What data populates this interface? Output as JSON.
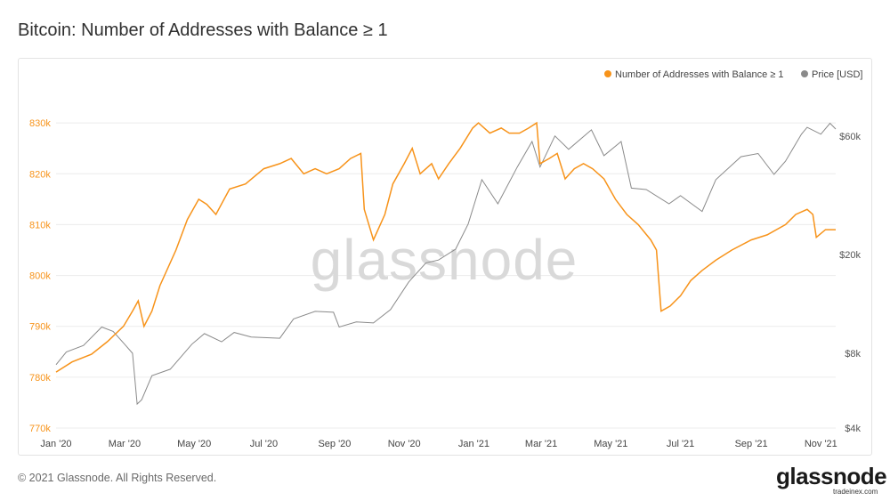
{
  "header": {
    "title": "Bitcoin: Number of Addresses with Balance ≥ 1"
  },
  "footer": {
    "copyright": "© 2021 Glassnode. All Rights Reserved.",
    "logo": "glassnode",
    "credit": "tradeinex.com"
  },
  "watermark": "glassnode",
  "colors": {
    "addresses": "#f7931a",
    "price": "#8a8a8a",
    "grid": "#ececec"
  },
  "chart_data": {
    "type": "line",
    "x_ticks": [
      "Jan '20",
      "Mar '20",
      "May '20",
      "Jul '20",
      "Sep '20",
      "Nov '20",
      "Jan '21",
      "Mar '21",
      "May '21",
      "Jul '21",
      "Sep '21",
      "Nov '21"
    ],
    "xlim": [
      "2020-01-01",
      "2021-11-14"
    ],
    "y_left": {
      "ticks": [
        "770k",
        "780k",
        "790k",
        "800k",
        "810k",
        "820k",
        "830k"
      ],
      "ylim": [
        770000,
        833000
      ]
    },
    "y_right": {
      "scale": "log",
      "ticks": [
        "$4k",
        "$8k",
        "$20k",
        "$60k"
      ],
      "tick_values": [
        4000,
        8000,
        20000,
        60000
      ],
      "ylim": [
        4000,
        78000
      ]
    },
    "legend": {
      "placement": "top-right"
    },
    "series": [
      {
        "name": "Number of Addresses with Balance ≥ 1",
        "axis": "left",
        "points": [
          [
            "2020-01-01",
            781000
          ],
          [
            "2020-01-15",
            783000
          ],
          [
            "2020-02-01",
            784500
          ],
          [
            "2020-02-15",
            787000
          ],
          [
            "2020-02-29",
            790000
          ],
          [
            "2020-03-08",
            793000
          ],
          [
            "2020-03-13",
            795000
          ],
          [
            "2020-03-18",
            790000
          ],
          [
            "2020-03-25",
            793000
          ],
          [
            "2020-04-01",
            798000
          ],
          [
            "2020-04-15",
            805000
          ],
          [
            "2020-04-25",
            811000
          ],
          [
            "2020-05-05",
            815000
          ],
          [
            "2020-05-12",
            814000
          ],
          [
            "2020-05-20",
            812000
          ],
          [
            "2020-06-01",
            817000
          ],
          [
            "2020-06-15",
            818000
          ],
          [
            "2020-07-01",
            821000
          ],
          [
            "2020-07-15",
            822000
          ],
          [
            "2020-07-25",
            823000
          ],
          [
            "2020-08-05",
            820000
          ],
          [
            "2020-08-15",
            821000
          ],
          [
            "2020-08-25",
            820000
          ],
          [
            "2020-09-05",
            821000
          ],
          [
            "2020-09-15",
            823000
          ],
          [
            "2020-09-24",
            824000
          ],
          [
            "2020-09-27",
            813000
          ],
          [
            "2020-10-05",
            807000
          ],
          [
            "2020-10-15",
            812000
          ],
          [
            "2020-10-22",
            818000
          ],
          [
            "2020-11-01",
            822000
          ],
          [
            "2020-11-08",
            825000
          ],
          [
            "2020-11-15",
            820000
          ],
          [
            "2020-11-25",
            822000
          ],
          [
            "2020-12-01",
            819000
          ],
          [
            "2020-12-10",
            822000
          ],
          [
            "2020-12-20",
            825000
          ],
          [
            "2020-12-31",
            829000
          ],
          [
            "2021-01-05",
            830000
          ],
          [
            "2021-01-15",
            828000
          ],
          [
            "2021-01-25",
            829000
          ],
          [
            "2021-02-01",
            828000
          ],
          [
            "2021-02-10",
            828000
          ],
          [
            "2021-02-18",
            829000
          ],
          [
            "2021-02-25",
            830000
          ],
          [
            "2021-02-28",
            822000
          ],
          [
            "2021-03-08",
            823000
          ],
          [
            "2021-03-15",
            824000
          ],
          [
            "2021-03-22",
            819000
          ],
          [
            "2021-03-30",
            821000
          ],
          [
            "2021-04-07",
            822000
          ],
          [
            "2021-04-15",
            821000
          ],
          [
            "2021-04-25",
            819000
          ],
          [
            "2021-05-05",
            815000
          ],
          [
            "2021-05-15",
            812000
          ],
          [
            "2021-05-25",
            810000
          ],
          [
            "2021-06-05",
            807000
          ],
          [
            "2021-06-10",
            805000
          ],
          [
            "2021-06-14",
            793000
          ],
          [
            "2021-06-22",
            794000
          ],
          [
            "2021-07-01",
            796000
          ],
          [
            "2021-07-10",
            799000
          ],
          [
            "2021-07-20",
            801000
          ],
          [
            "2021-08-01",
            803000
          ],
          [
            "2021-08-15",
            805000
          ],
          [
            "2021-09-01",
            807000
          ],
          [
            "2021-09-15",
            808000
          ],
          [
            "2021-10-01",
            810000
          ],
          [
            "2021-10-10",
            812000
          ],
          [
            "2021-10-20",
            813000
          ],
          [
            "2021-10-25",
            812000
          ],
          [
            "2021-10-28",
            807500
          ],
          [
            "2021-11-05",
            809000
          ],
          [
            "2021-11-14",
            809000
          ]
        ]
      },
      {
        "name": "Price [USD]",
        "axis": "right",
        "points": [
          [
            "2020-01-01",
            7200
          ],
          [
            "2020-01-10",
            8100
          ],
          [
            "2020-01-25",
            8600
          ],
          [
            "2020-02-10",
            10200
          ],
          [
            "2020-02-20",
            9800
          ],
          [
            "2020-03-01",
            8700
          ],
          [
            "2020-03-08",
            8000
          ],
          [
            "2020-03-12",
            5000
          ],
          [
            "2020-03-16",
            5200
          ],
          [
            "2020-03-25",
            6500
          ],
          [
            "2020-04-10",
            6900
          ],
          [
            "2020-04-29",
            8700
          ],
          [
            "2020-05-10",
            9600
          ],
          [
            "2020-05-25",
            8900
          ],
          [
            "2020-06-05",
            9700
          ],
          [
            "2020-06-20",
            9300
          ],
          [
            "2020-07-15",
            9200
          ],
          [
            "2020-07-27",
            11000
          ],
          [
            "2020-08-15",
            11800
          ],
          [
            "2020-08-31",
            11700
          ],
          [
            "2020-09-05",
            10200
          ],
          [
            "2020-09-20",
            10700
          ],
          [
            "2020-10-05",
            10600
          ],
          [
            "2020-10-20",
            12000
          ],
          [
            "2020-11-05",
            15500
          ],
          [
            "2020-11-20",
            18500
          ],
          [
            "2020-12-01",
            19000
          ],
          [
            "2020-12-16",
            21000
          ],
          [
            "2020-12-27",
            26500
          ],
          [
            "2021-01-08",
            40000
          ],
          [
            "2021-01-22",
            32000
          ],
          [
            "2021-02-08",
            45000
          ],
          [
            "2021-02-21",
            57000
          ],
          [
            "2021-02-28",
            45000
          ],
          [
            "2021-03-13",
            60000
          ],
          [
            "2021-03-25",
            53000
          ],
          [
            "2021-04-14",
            63500
          ],
          [
            "2021-04-25",
            50000
          ],
          [
            "2021-05-10",
            57000
          ],
          [
            "2021-05-19",
            37000
          ],
          [
            "2021-06-01",
            36500
          ],
          [
            "2021-06-21",
            32000
          ],
          [
            "2021-07-01",
            34500
          ],
          [
            "2021-07-20",
            29800
          ],
          [
            "2021-08-01",
            40000
          ],
          [
            "2021-08-23",
            49500
          ],
          [
            "2021-09-07",
            51000
          ],
          [
            "2021-09-21",
            42000
          ],
          [
            "2021-10-01",
            47500
          ],
          [
            "2021-10-15",
            61000
          ],
          [
            "2021-10-20",
            65000
          ],
          [
            "2021-11-01",
            61000
          ],
          [
            "2021-11-09",
            67500
          ],
          [
            "2021-11-14",
            64000
          ]
        ]
      }
    ]
  }
}
